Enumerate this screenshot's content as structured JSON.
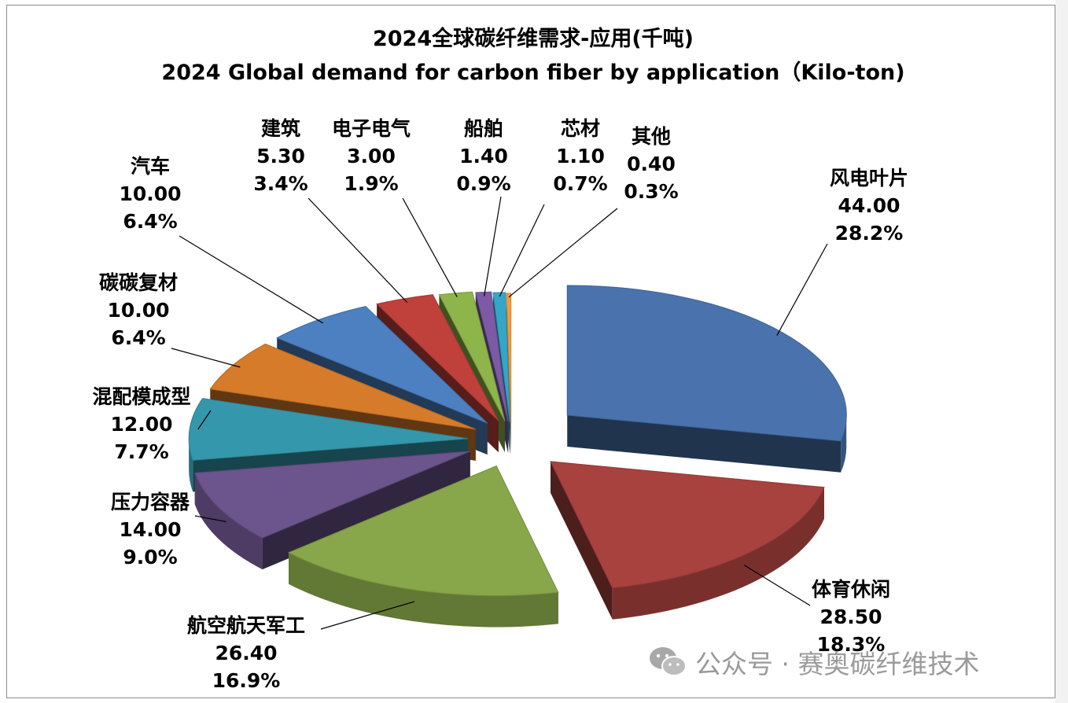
{
  "chart_data": {
    "type": "pie",
    "title": "2024全球碳纤维需求-应用(千吨)",
    "subtitle": "2024 Global demand for carbon fiber by application（Kilo-ton)",
    "slices": [
      {
        "label": "风电叶片",
        "value": "44.00",
        "percent": "28.2%",
        "color": "#4a73ad"
      },
      {
        "label": "体育休闲",
        "value": "28.50",
        "percent": "18.3%",
        "color": "#a8423f"
      },
      {
        "label": "航空航天军工",
        "value": "26.40",
        "percent": "16.9%",
        "color": "#88a64a"
      },
      {
        "label": "压力容器",
        "value": "14.00",
        "percent": "9.0%",
        "color": "#6c548c"
      },
      {
        "label": "混配模成型",
        "value": "12.00",
        "percent": "7.7%",
        "color": "#3597ab"
      },
      {
        "label": "碳碳复材",
        "value": "10.00",
        "percent": "6.4%",
        "color": "#d67b2a"
      },
      {
        "label": "汽车",
        "value": "10.00",
        "percent": "6.4%",
        "color": "#4c80c0"
      },
      {
        "label": "建筑",
        "value": "5.30",
        "percent": "3.4%",
        "color": "#c0403c"
      },
      {
        "label": "电子电气",
        "value": "3.00",
        "percent": "1.9%",
        "color": "#8db54a"
      },
      {
        "label": "船舶",
        "value": "1.40",
        "percent": "0.9%",
        "color": "#7c5aa6"
      },
      {
        "label": "芯材",
        "value": "1.10",
        "percent": "0.7%",
        "color": "#35a6c8"
      },
      {
        "label": "其他",
        "value": "0.40",
        "percent": "0.3%",
        "color": "#f39a3c"
      }
    ]
  },
  "watermark": {
    "text": "公众号 · 赛奥碳纤维技术",
    "icon": "wechat-icon"
  }
}
